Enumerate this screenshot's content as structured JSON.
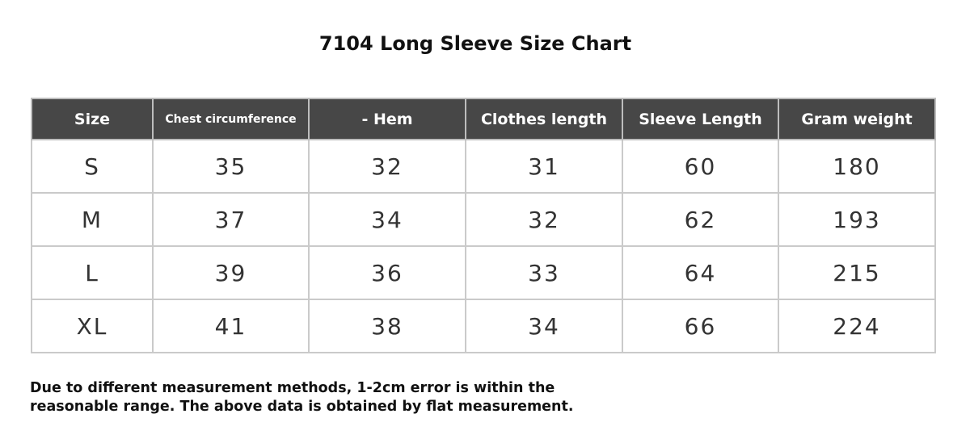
{
  "title": "7104 Long Sleeve Size Chart",
  "headers": [
    "Size",
    "Chest circumference",
    "- Hem",
    "Clothes length",
    "Sleeve Length",
    "Gram weight"
  ],
  "rows": [
    [
      "S",
      "35",
      "32",
      "31",
      "60",
      "180"
    ],
    [
      "M",
      "37",
      "34",
      "32",
      "62",
      "193"
    ],
    [
      "L",
      "39",
      "36",
      "33",
      "64",
      "215"
    ],
    [
      "XL",
      "41",
      "38",
      "34",
      "66",
      "224"
    ]
  ],
  "note": [
    "Due to different measurement methods, 1-2cm error is within the",
    "reasonable range. The above data is obtained by flat measurement."
  ],
  "colors": {
    "header_bg": "#474747",
    "border": "#cacaca"
  }
}
